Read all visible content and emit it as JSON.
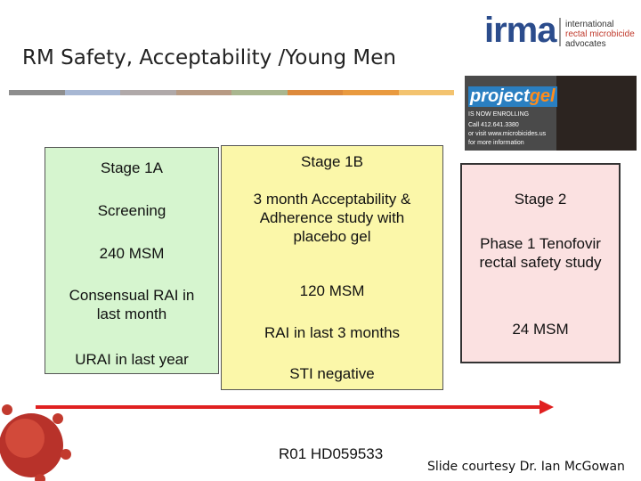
{
  "header": {
    "title": "RM Safety, Acceptability /Young Men",
    "logo": {
      "name": "irma",
      "tagline": [
        "international",
        "rectal microbicide",
        "advocates"
      ]
    }
  },
  "ad": {
    "brand_prefix": "project",
    "brand_suffix": "gel",
    "lines": [
      "IS NOW ENROLLING",
      "Call 412.641.3380",
      "or visit www.microbicides.us",
      "for more information"
    ]
  },
  "stages": [
    {
      "title": "Stage 1A",
      "items": [
        "Screening",
        "240 MSM",
        "Consensual RAI in last month",
        "URAI in last year"
      ]
    },
    {
      "title": "Stage 1B",
      "items": [
        "3 month Acceptability & Adherence study with placebo gel",
        "120 MSM",
        "RAI in last 3 months",
        "STI negative"
      ]
    },
    {
      "title": "Stage 2",
      "items": [
        "Phase 1 Tenofovir rectal safety study",
        "24 MSM"
      ]
    }
  ],
  "footer": {
    "grant": "R01 HD059533",
    "credit": "Slide courtesy Dr. Ian McGowan"
  }
}
